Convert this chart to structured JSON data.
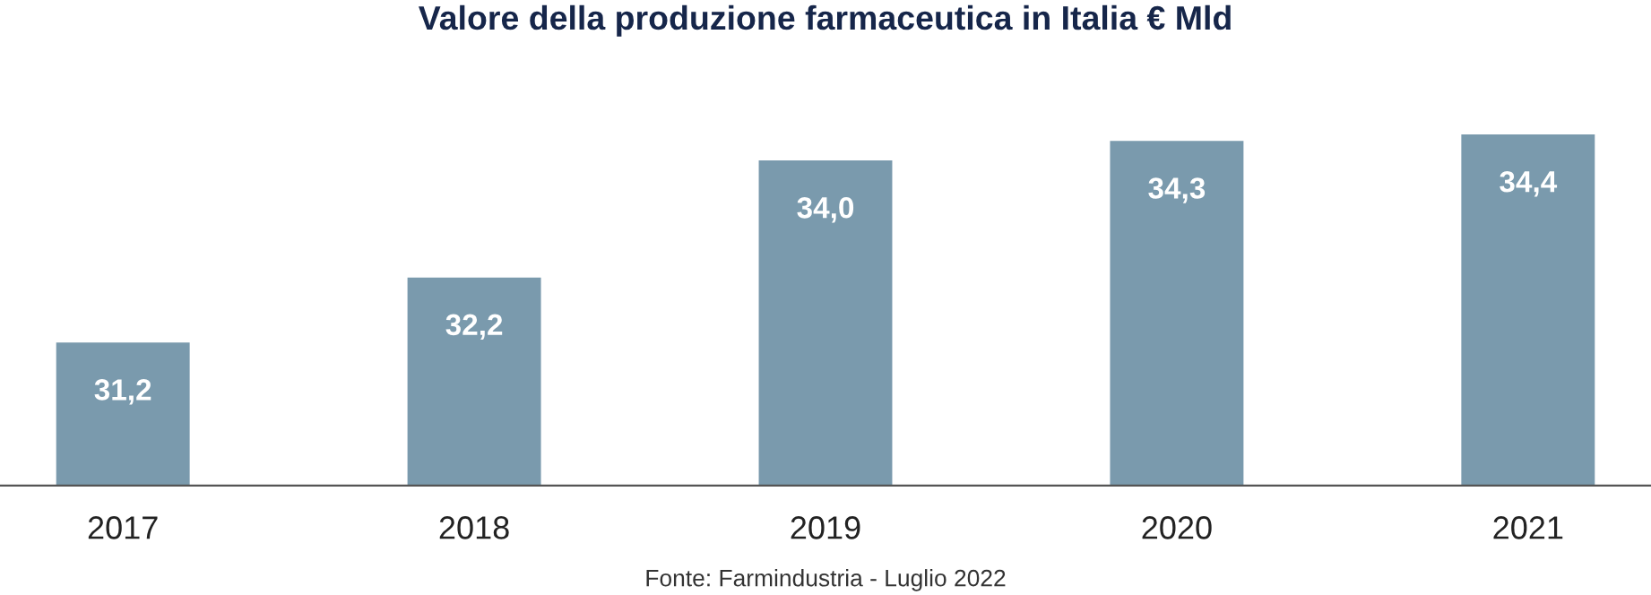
{
  "chart_data": {
    "type": "bar",
    "title": "Valore della produzione farmaceutica in Italia € Mld",
    "categories": [
      "2017",
      "2018",
      "2019",
      "2020",
      "2021"
    ],
    "values": [
      31.2,
      32.2,
      34.0,
      34.3,
      34.4
    ],
    "value_labels": [
      "31,2",
      "32,2",
      "34,0",
      "34,3",
      "34,4"
    ],
    "color": "#7a9aad",
    "ylim": [
      29,
      34.4
    ],
    "grid": false,
    "legend": false,
    "annotations": [
      "Fonte: Farmindustria - Luglio 2022"
    ]
  }
}
